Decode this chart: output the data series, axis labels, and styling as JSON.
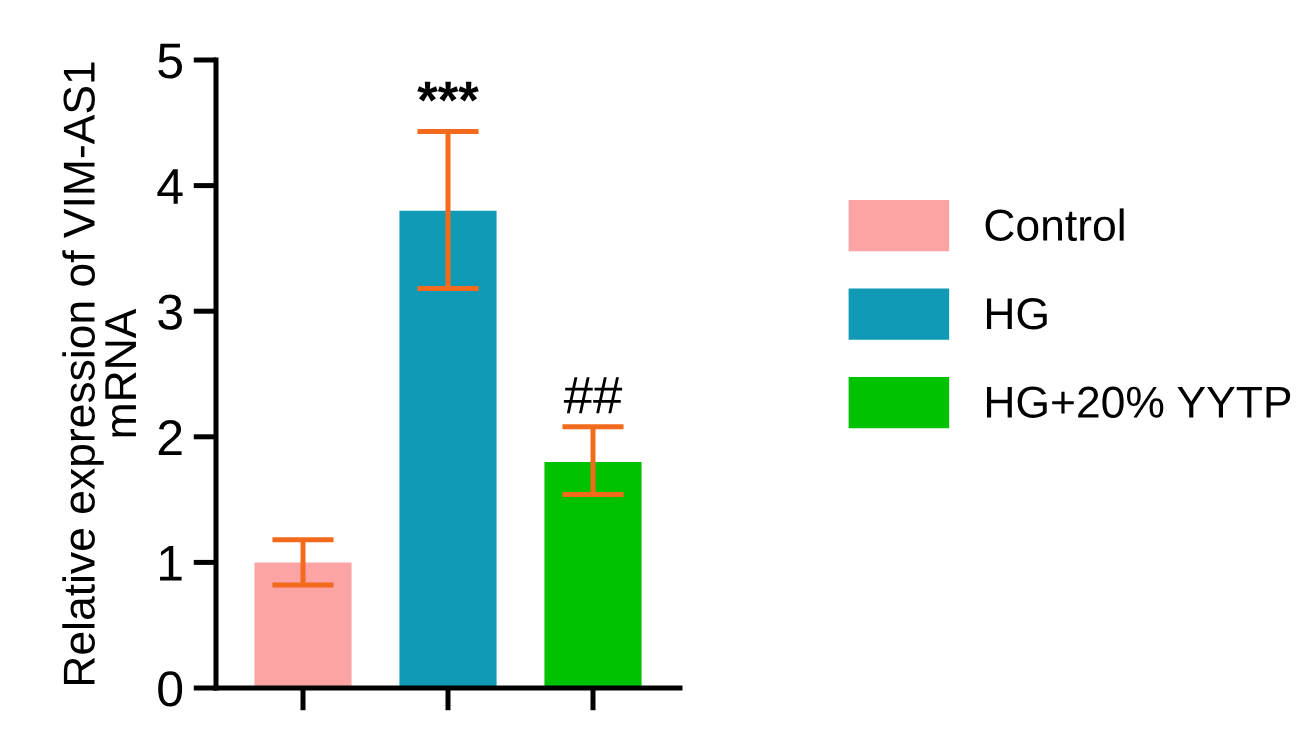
{
  "chart_data": {
    "type": "bar",
    "ylabel": "Relative expression of VIM-AS1\nmRNA",
    "categories": [
      null,
      null,
      null
    ],
    "series": [
      {
        "name": "Control",
        "color": "#fca3a3",
        "values": [
          1.0,
          null,
          null
        ],
        "errors": [
          [
            0.82,
            1.18
          ],
          null,
          null
        ]
      },
      {
        "name": "HG",
        "color": "#119ab5",
        "values": [
          null,
          3.8,
          null
        ],
        "errors": [
          null,
          [
            3.18,
            4.43
          ],
          null
        ]
      },
      {
        "name": "HG+20% YYTP",
        "color": "#00c200",
        "values": [
          null,
          null,
          1.8
        ],
        "errors": [
          null,
          null,
          [
            1.54,
            2.08
          ]
        ]
      }
    ],
    "annotations": [
      "***",
      "##"
    ],
    "ylim": [
      0,
      5
    ],
    "yticks": [
      0,
      1,
      2,
      3,
      4,
      5
    ],
    "grid": false,
    "legend": "right"
  }
}
